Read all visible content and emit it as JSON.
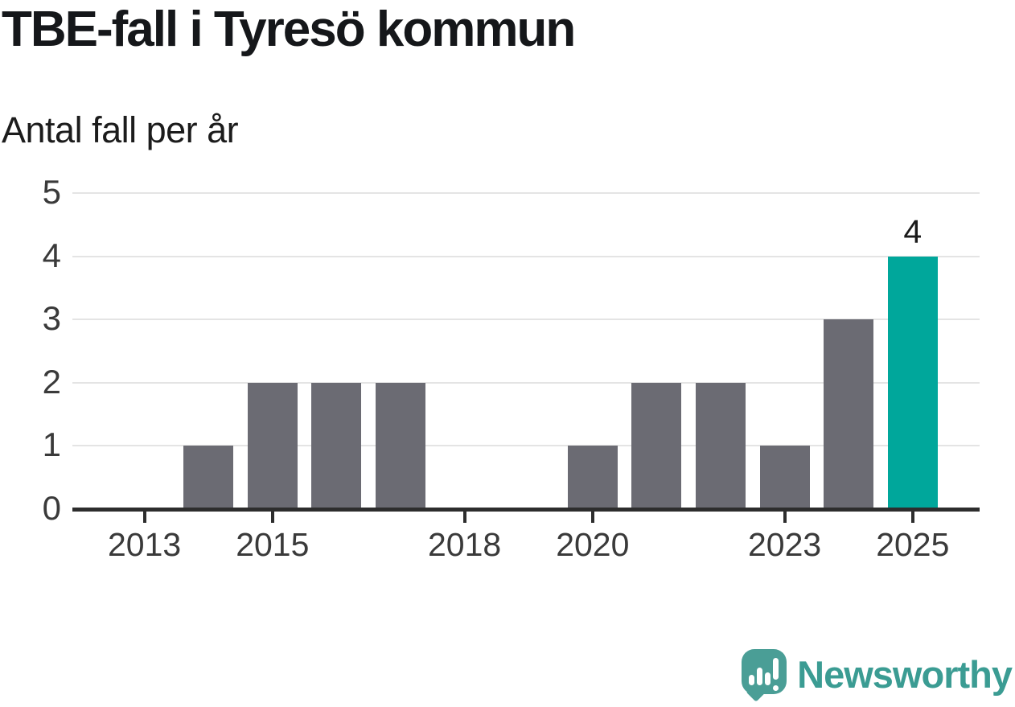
{
  "title": "TBE-fall i Tyresö kommun",
  "subtitle": "Antal fall per år",
  "chart_data": {
    "type": "bar",
    "categories": [
      2012,
      2013,
      2014,
      2015,
      2016,
      2017,
      2018,
      2019,
      2020,
      2021,
      2022,
      2023,
      2024,
      2025
    ],
    "values": [
      0,
      0,
      1,
      2,
      2,
      2,
      0,
      0,
      1,
      2,
      2,
      1,
      3,
      4
    ],
    "title": "TBE-fall i Tyresö kommun",
    "subtitle": "Antal fall per år",
    "xlabel": "",
    "ylabel": "Antal fall per år",
    "ylim": [
      0,
      5
    ],
    "yticks": [
      0,
      1,
      2,
      3,
      4,
      5
    ],
    "xticks": [
      2013,
      2015,
      2018,
      2020,
      2023,
      2025
    ],
    "grid": true,
    "legend": "none",
    "highlight_category": 2025,
    "data_labels": {
      "2025": "4"
    },
    "colors": {
      "bar": "#6b6b73",
      "highlight": "#00a79b",
      "grid": "#e4e4e4",
      "axis": "#2d2d2d",
      "tick_label": "#3a3a3a",
      "value_label": "#1a1a1a"
    }
  },
  "footer": {
    "brand": "Newsworthy",
    "logo_icon": "newsworthy-speech-bubble-bar-chart-icon",
    "colors": {
      "icon": "#4a9e96",
      "text": "#3b9c93"
    }
  }
}
